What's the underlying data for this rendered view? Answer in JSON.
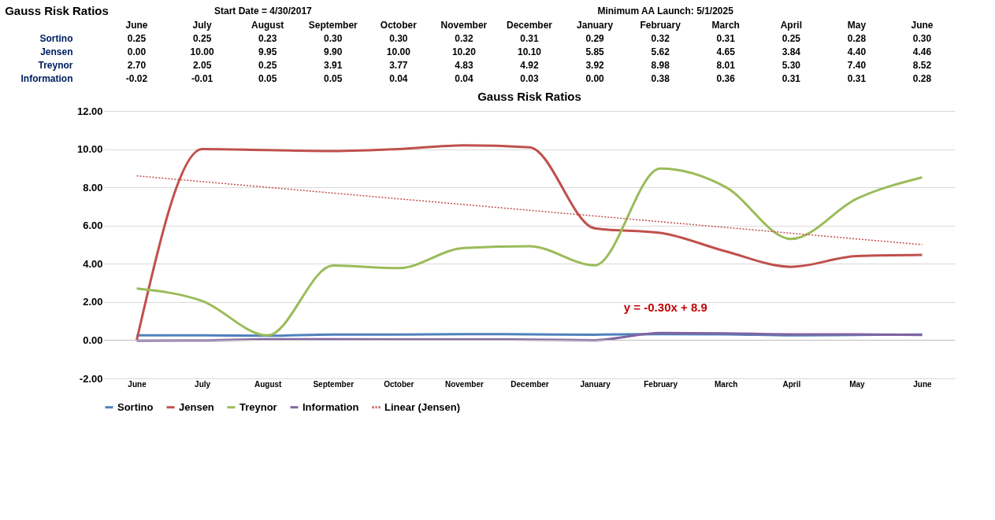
{
  "chart_data": {
    "type": "line",
    "title": "Gauss Risk Ratios",
    "annotations": [
      "Gauss Risk Ratios",
      "Start Date = 4/30/2017",
      "Minimum AA Launch:  5/1/2025",
      "y = -0.30x + 8.9"
    ],
    "categories": [
      "June",
      "July",
      "August",
      "September",
      "October",
      "November",
      "December",
      "January",
      "February",
      "March",
      "April",
      "May",
      "June"
    ],
    "series": [
      {
        "name": "Sortino",
        "color": "#4f81bd",
        "values": [
          0.25,
          0.25,
          0.23,
          0.3,
          0.3,
          0.32,
          0.31,
          0.29,
          0.32,
          0.31,
          0.25,
          0.28,
          0.3
        ],
        "value_labels": [
          "0.25",
          "0.25",
          "0.23",
          "0.30",
          "0.30",
          "0.32",
          "0.31",
          "0.29",
          "0.32",
          "0.31",
          "0.25",
          "0.28",
          "0.30"
        ]
      },
      {
        "name": "Jensen",
        "color": "#c0504d",
        "values": [
          0.0,
          10.0,
          9.95,
          9.9,
          10.0,
          10.2,
          10.1,
          5.85,
          5.62,
          4.65,
          3.84,
          4.4,
          4.46
        ],
        "value_labels": [
          "0.00",
          "10.00",
          "9.95",
          "9.90",
          "10.00",
          "10.20",
          "10.10",
          "5.85",
          "5.62",
          "4.65",
          "3.84",
          "4.40",
          "4.46"
        ]
      },
      {
        "name": "Treynor",
        "color": "#9bbb59",
        "values": [
          2.7,
          2.05,
          0.25,
          3.91,
          3.77,
          4.83,
          4.92,
          3.92,
          8.98,
          8.01,
          5.3,
          7.4,
          8.52
        ],
        "value_labels": [
          "2.70",
          "2.05",
          "0.25",
          "3.91",
          "3.77",
          "4.83",
          "4.92",
          "3.92",
          "8.98",
          "8.01",
          "5.30",
          "7.40",
          "8.52"
        ]
      },
      {
        "name": "Information",
        "color": "#8064a2",
        "values": [
          -0.02,
          -0.01,
          0.05,
          0.05,
          0.04,
          0.04,
          0.03,
          0.0,
          0.38,
          0.36,
          0.31,
          0.31,
          0.28
        ],
        "value_labels": [
          "-0.02",
          "-0.01",
          "0.05",
          "0.05",
          "0.04",
          "0.04",
          "0.03",
          "0.00",
          "0.38",
          "0.36",
          "0.31",
          "0.31",
          "0.28"
        ]
      },
      {
        "name": "Linear (Jensen)",
        "color": "#c0504d",
        "line_style": "dotted",
        "values": [
          8.6,
          8.3,
          8.0,
          7.7,
          7.4,
          7.1,
          6.8,
          6.5,
          6.2,
          5.9,
          5.6,
          5.3,
          5.0
        ]
      }
    ],
    "ylim": [
      -2,
      12
    ],
    "yticks": [
      {
        "value": -2,
        "label": "-2.00"
      },
      {
        "value": 0,
        "label": "0.00"
      },
      {
        "value": 2,
        "label": "2.00"
      },
      {
        "value": 4,
        "label": "4.00"
      },
      {
        "value": 6,
        "label": "6.00"
      },
      {
        "value": 8,
        "label": "8.00"
      },
      {
        "value": 10,
        "label": "10.00"
      },
      {
        "value": 12,
        "label": "12.00"
      }
    ],
    "grid": "y",
    "legend": "bottom",
    "line_style": "solid",
    "marker": "none"
  }
}
